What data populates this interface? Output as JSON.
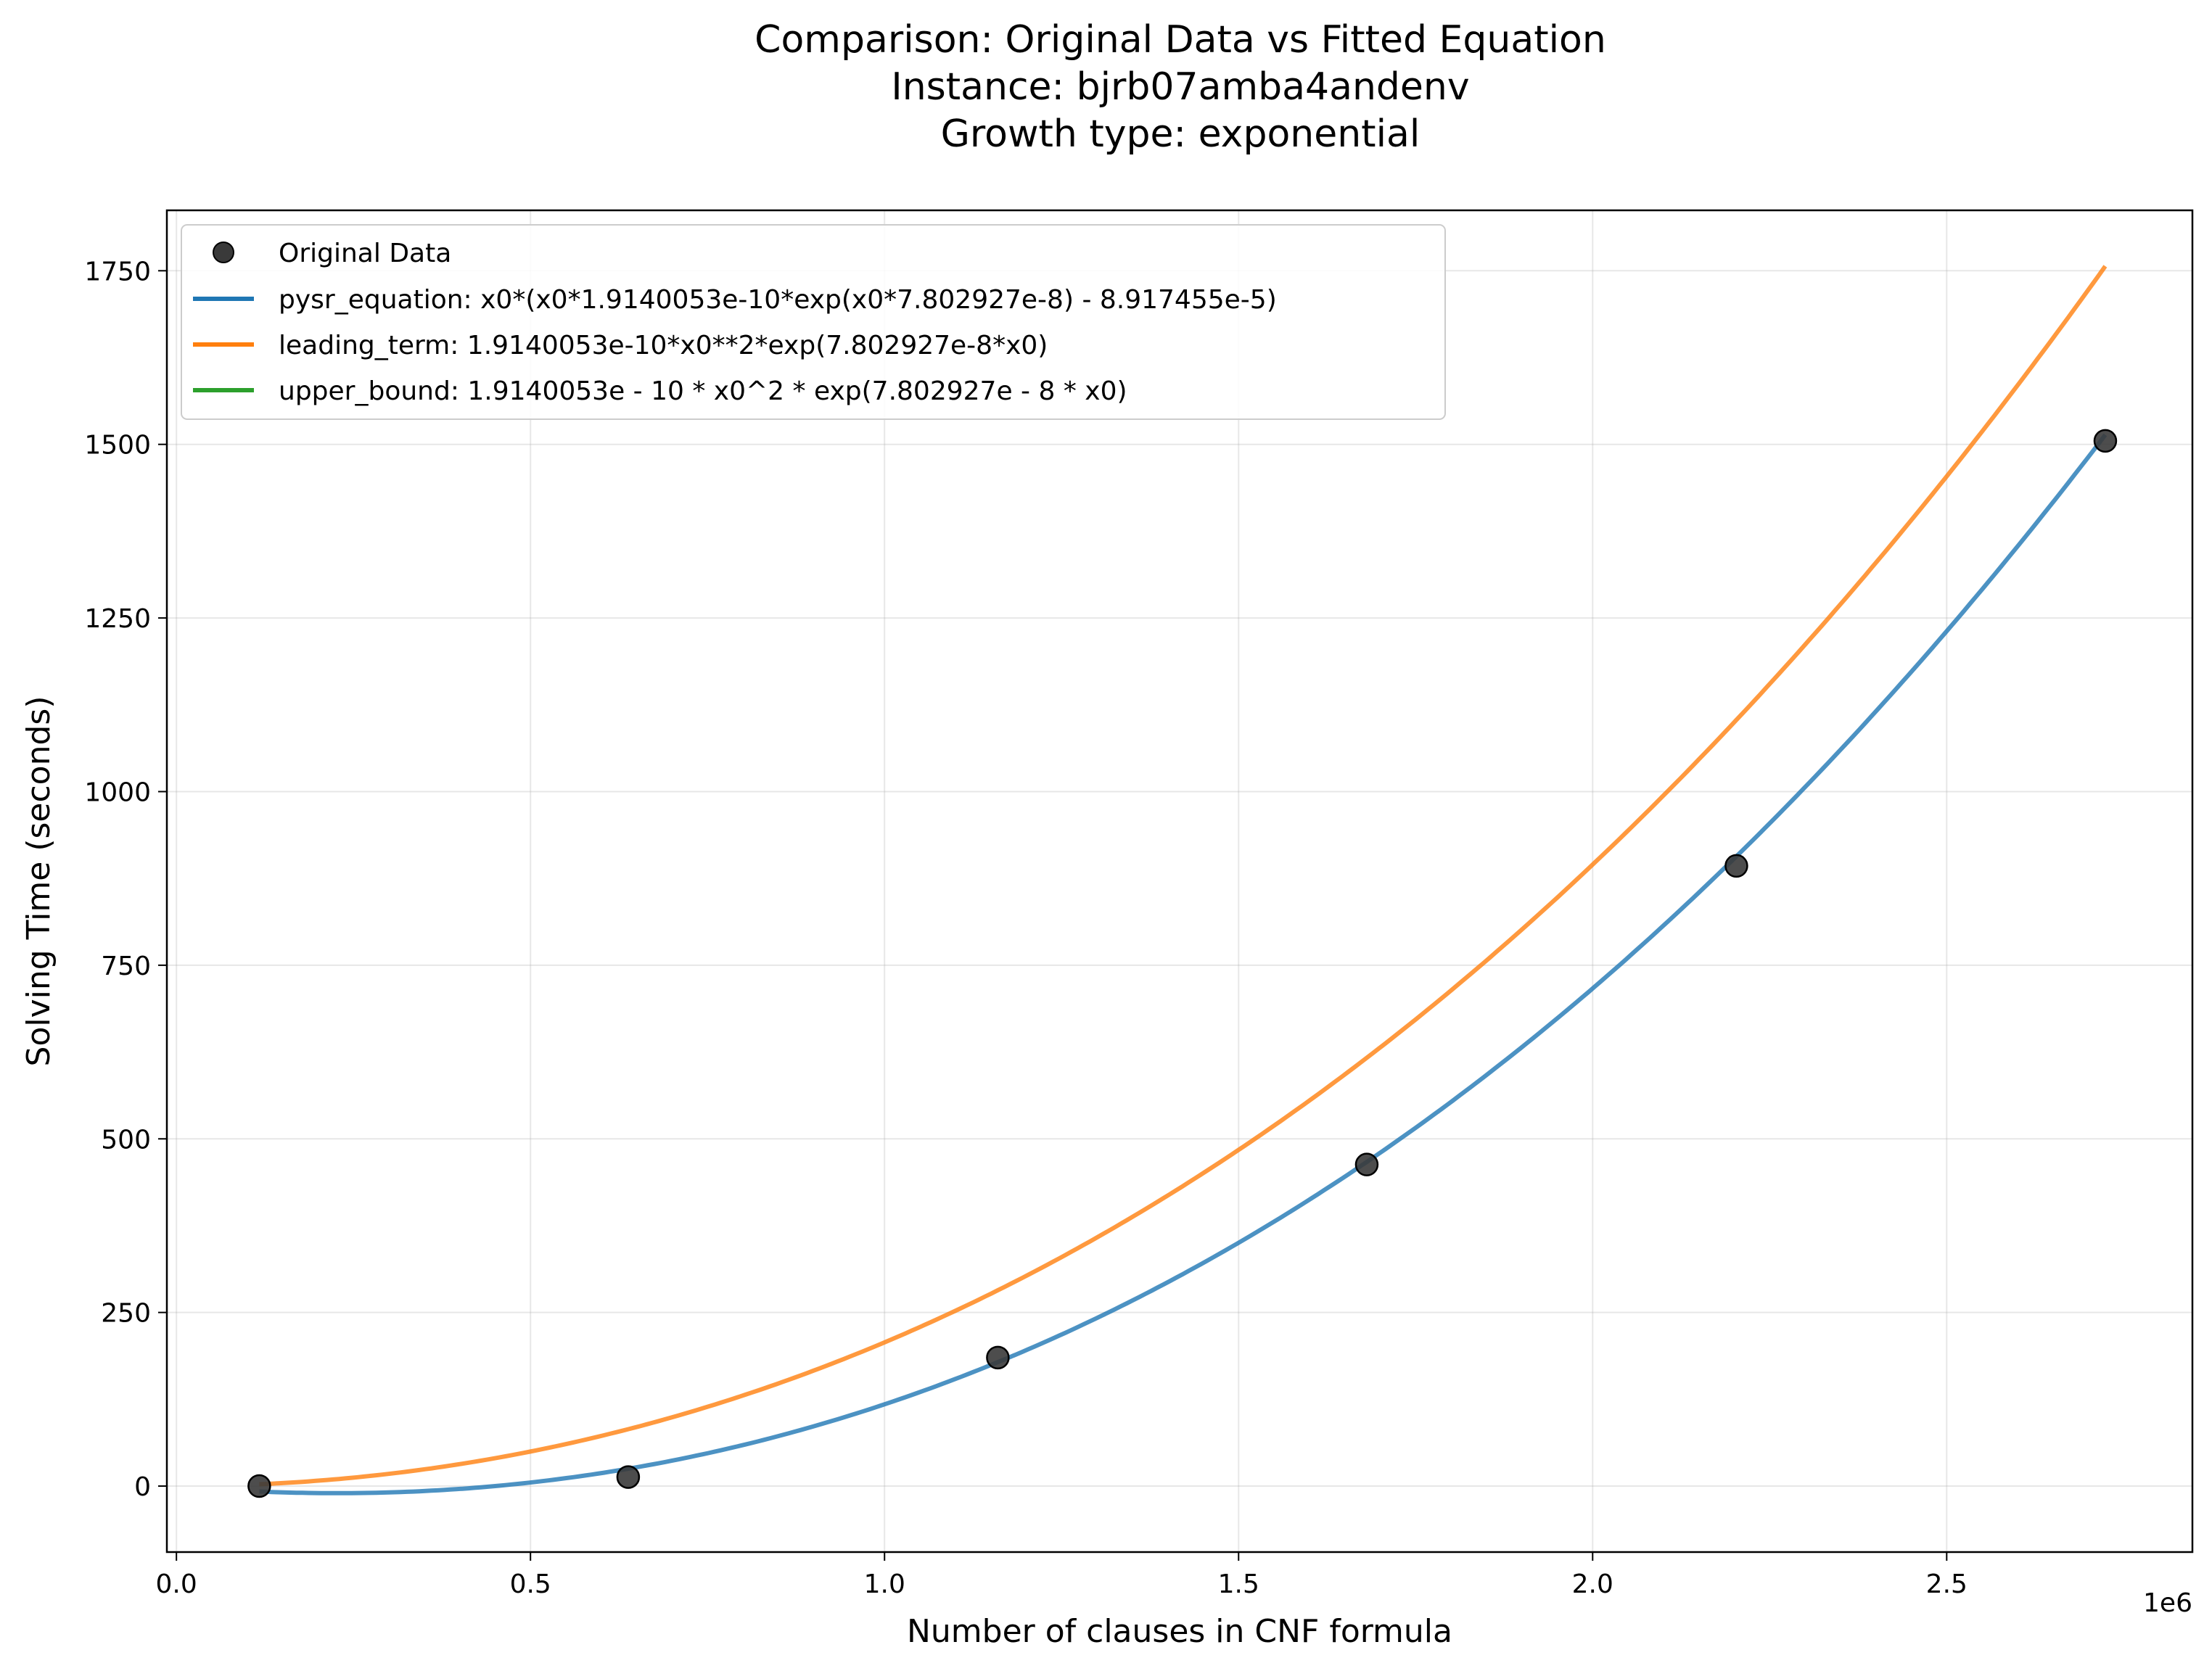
{
  "chart_data": {
    "type": "scatter",
    "title_lines": [
      "Comparison: Original Data vs Fitted Equation",
      "Instance: bjrb07amba4andenv",
      "Growth type: exponential"
    ],
    "xlabel": "Number of clauses in CNF formula",
    "ylabel": "Solving Time (seconds)",
    "x_offset_label": "1e6",
    "x_scale": 1000000,
    "xlim": [
      -0.0135,
      2.847
    ],
    "ylim": [
      -95,
      1837
    ],
    "x_ticks": [
      0.0,
      0.5,
      1.0,
      1.5,
      2.0,
      2.5
    ],
    "x_tick_labels": [
      "0.0",
      "0.5",
      "1.0",
      "1.5",
      "2.0",
      "2.5"
    ],
    "y_ticks": [
      0,
      250,
      500,
      750,
      1000,
      1250,
      1500,
      1750
    ],
    "y_tick_labels": [
      "0",
      "250",
      "500",
      "750",
      "1000",
      "1250",
      "1500",
      "1750"
    ],
    "grid": true,
    "legend_position": "upper-left",
    "points": {
      "name": "Original Data",
      "color": "#3a3a3a",
      "x": [
        0.117,
        0.638,
        1.16,
        1.681,
        2.203,
        2.724
      ],
      "y": [
        0,
        13,
        185,
        463,
        893,
        1505
      ]
    },
    "series": [
      {
        "name": "pysr_equation: x0*(x0*1.9140053e-10*exp(x0*7.802927e-8) - 8.917455e-5)",
        "color": "#1f77b4",
        "formula": "pysr",
        "x_range": [
          0.117,
          2.724
        ]
      },
      {
        "name": "leading_term: 1.9140053e-10*x0**2*exp(7.802927e-8*x0)",
        "color": "#ff7f0e",
        "formula": "leading",
        "x_range": [
          0.117,
          2.724
        ]
      },
      {
        "name": "upper_bound: 1.9140053e - 10 * x0^2 * exp(7.802927e - 8 * x0)",
        "color": "#2ca02c",
        "formula": "none",
        "x_range": [
          0.117,
          2.724
        ]
      }
    ],
    "coefficients": {
      "a": 1.9140053e-10,
      "b": 7.802927e-08,
      "c": 8.917455e-05
    }
  }
}
